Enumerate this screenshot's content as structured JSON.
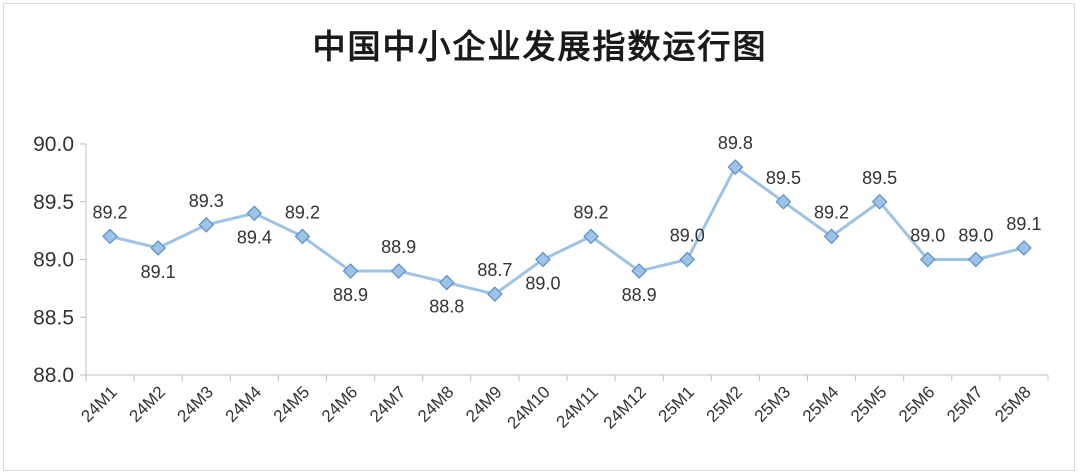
{
  "chart_data": {
    "type": "line",
    "title": "中国中小企业发展指数运行图",
    "xlabel": "",
    "ylabel": "",
    "categories": [
      "24M1",
      "24M2",
      "24M3",
      "24M4",
      "24M5",
      "24M6",
      "24M7",
      "24M8",
      "24M9",
      "24M10",
      "24M11",
      "24M12",
      "25M1",
      "25M2",
      "25M3",
      "25M4",
      "25M5",
      "25M6",
      "25M7",
      "25M8"
    ],
    "series": [
      {
        "values": [
          89.2,
          89.1,
          89.3,
          89.4,
          89.2,
          88.9,
          88.9,
          88.8,
          88.7,
          89.0,
          89.2,
          88.9,
          89.0,
          89.8,
          89.5,
          89.2,
          89.5,
          89.0,
          89.0,
          89.1
        ],
        "labels": [
          "89.2",
          "89.1",
          "89.3",
          "89.4",
          "89.2",
          "88.9",
          "88.9",
          "88.8",
          "88.7",
          "89.0",
          "89.2",
          "88.9",
          "89.0",
          "89.8",
          "89.5",
          "89.2",
          "89.5",
          "89.0",
          "89.0",
          "89.1"
        ],
        "label_positions": [
          "above",
          "below",
          "above",
          "below",
          "above",
          "below",
          "above",
          "below",
          "above",
          "below",
          "above",
          "below",
          "above",
          "above",
          "above",
          "above",
          "above",
          "above",
          "above",
          "above"
        ]
      }
    ],
    "ylim": [
      88.0,
      90.0
    ],
    "yticks": [
      "88.0",
      "88.5",
      "89.0",
      "89.5",
      "90.0"
    ],
    "grid": false,
    "legend": "none",
    "colors": {
      "line": "#9dc3e6",
      "marker_fill": "#9dc3e6",
      "marker_stroke": "#5b8fc9",
      "axis": "#bfbfbf"
    }
  }
}
